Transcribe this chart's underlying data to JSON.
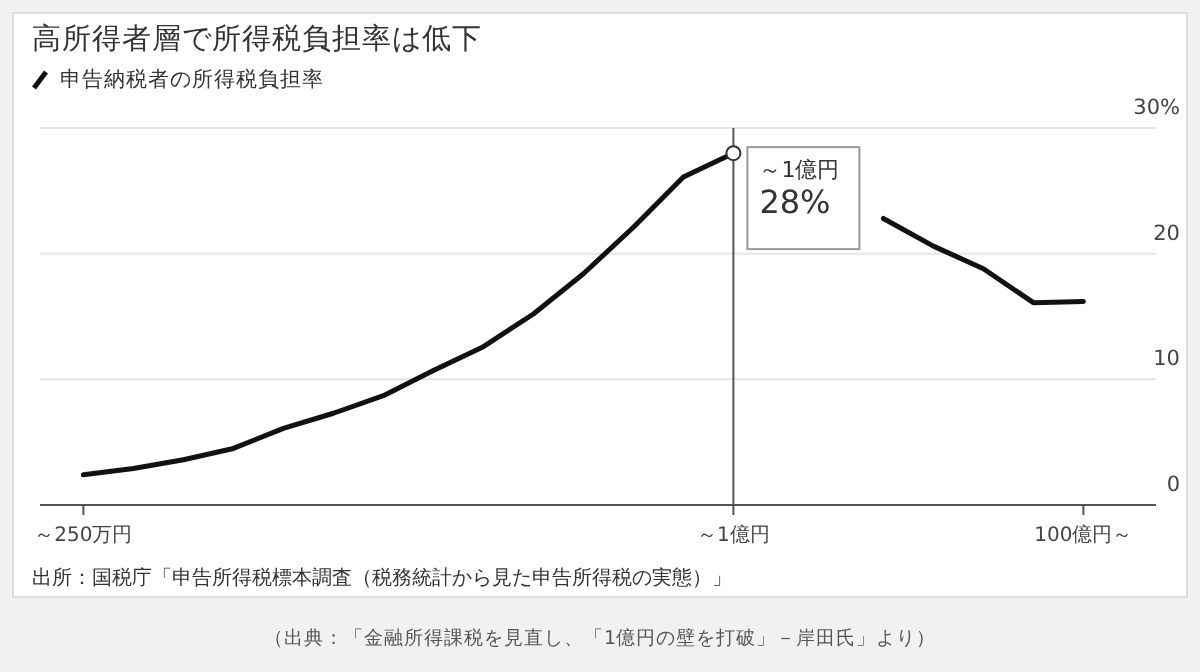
{
  "chart_data": {
    "type": "line",
    "title": "高所得者層で所得税負担率は低下",
    "categories": [
      "～250万円",
      null,
      null,
      null,
      null,
      null,
      null,
      null,
      null,
      null,
      null,
      null,
      null,
      "～1億円",
      null,
      null,
      null,
      null,
      null,
      null,
      "100億円～"
    ],
    "series": [
      {
        "name": "申告納税者の所得税負担率",
        "color": "#111111",
        "values": [
          2.4,
          2.9,
          3.6,
          4.5,
          6.1,
          7.3,
          8.7,
          10.7,
          12.6,
          15.2,
          18.4,
          22.1,
          26.1,
          28,
          null,
          null,
          22.8,
          20.6,
          18.8,
          16.1,
          16.2
        ]
      }
    ],
    "ylim": [
      0,
      30
    ],
    "yticks": [
      0,
      10,
      20,
      {
        "value": 30,
        "label": "30%"
      }
    ],
    "grid": "y",
    "legend": "top left",
    "marker": "none",
    "line_style": "solid",
    "ref_lines": [
      {
        "axis": "x",
        "value": "～1億円",
        "color": "#555555"
      }
    ],
    "annotations": [
      {
        "text": "～1億円",
        "x": "～1億円",
        "y": 28
      },
      {
        "text": "28%",
        "x": "～1億円",
        "y": 28
      },
      "出所：国税庁「申告所得税標本調査（税務統計から見た申告所得税の実態）」",
      "（出典：「金融所得課税を見直し、「1億円の壁を打破」－岸田氏」より）"
    ]
  }
}
